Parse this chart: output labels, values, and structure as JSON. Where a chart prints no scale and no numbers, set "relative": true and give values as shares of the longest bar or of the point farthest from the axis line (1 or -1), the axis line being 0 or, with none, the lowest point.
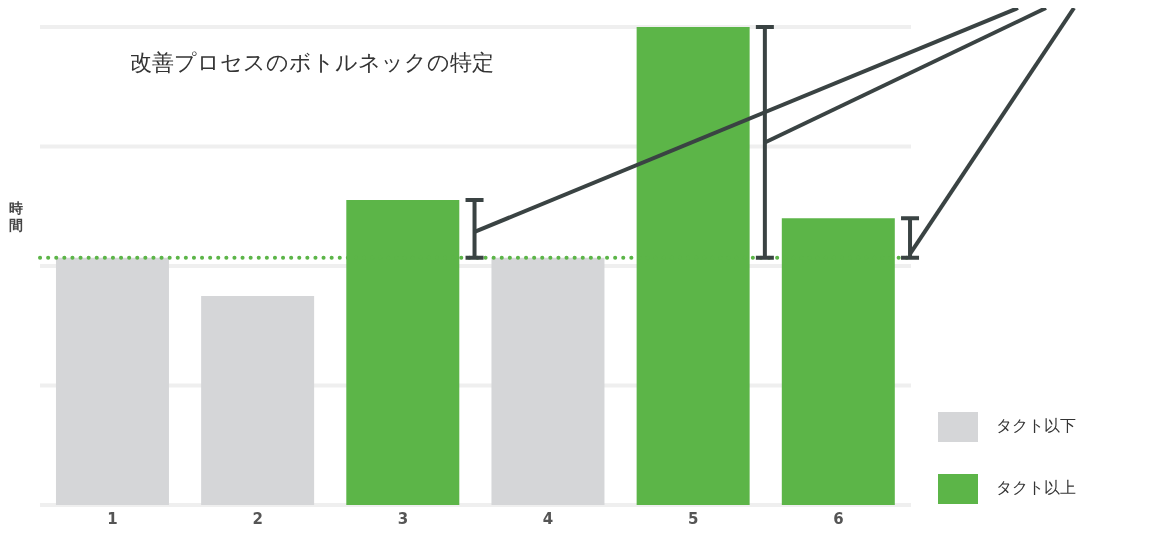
{
  "chart_data": {
    "type": "bar",
    "title": "改善プロセスのボトルネックの特定",
    "ylabel": "時間",
    "categories": [
      "1",
      "2",
      "3",
      "4",
      "5",
      "6"
    ],
    "series": [
      {
        "name": "タクト以下",
        "color": "#d5d6d8",
        "values": [
          0.517,
          0.437,
          null,
          0.517,
          null,
          null
        ]
      },
      {
        "name": "タクト以上",
        "color": "#5cb548",
        "values": [
          null,
          null,
          0.638,
          null,
          1,
          0.6
        ]
      }
    ],
    "stacked": true,
    "relative": true,
    "grid": "y",
    "legend": "bottom right",
    "ref_lines": [
      {
        "axis": "y",
        "value": 0.517,
        "color": "#5cb548",
        "line_style": "dotted"
      }
    ]
  }
}
